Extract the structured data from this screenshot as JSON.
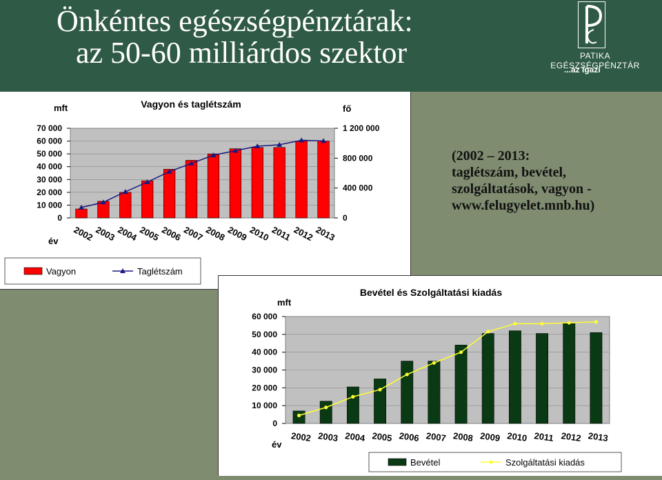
{
  "header": {
    "title_line1": "Önkéntes egészségpénztárak:",
    "title_line2": "az 50-60 milliárdos szektor"
  },
  "logo": {
    "name": "PATIKA EGÉSZSÉGPÉNZTÁR",
    "slogan": "...az Igazi",
    "icon": "pharmacy-p-logo-icon"
  },
  "note": {
    "lines": [
      "(2002 – 2013:",
      "taglétszám, bevétel,",
      "szolgáltatások, vagyon -",
      "www.felugyelet.mnb.hu)"
    ]
  },
  "colors": {
    "header_bg": "#2f5a45",
    "page_bg": "#7f8c70",
    "vagyon_bar": "#ff0000",
    "taglet_line": "#1a1a80",
    "bevetel_bar": "#0a3a14",
    "szolg_line": "#ffff33",
    "plot_bg": "#c0c0c0"
  },
  "chart_data": [
    {
      "type": "bar",
      "title": "Vagyon és taglétszám",
      "ylabel": "mft",
      "y2label": "fő",
      "xlabel": "év",
      "categories": [
        "2002",
        "2003",
        "2004",
        "2005",
        "2006",
        "2007",
        "2008",
        "2009",
        "2010",
        "2011",
        "2012",
        "2013"
      ],
      "ylim": [
        0,
        70000
      ],
      "yticks": [
        "70 000",
        "60 000",
        "50 000",
        "40 000",
        "30 000",
        "20 000",
        "10 000",
        "0"
      ],
      "y2lim": [
        0,
        1200000
      ],
      "y2ticks": [
        "1 200 000",
        "800 000",
        "400 000",
        "0"
      ],
      "series": [
        {
          "name": "Vagyon",
          "type": "bar",
          "axis": "left",
          "values": [
            7000,
            13000,
            20000,
            29000,
            38000,
            45000,
            50000,
            54000,
            55000,
            55000,
            60000,
            60000
          ]
        },
        {
          "name": "Taglétszám",
          "type": "line",
          "axis": "right",
          "values": [
            140000,
            210000,
            350000,
            480000,
            620000,
            730000,
            840000,
            900000,
            960000,
            980000,
            1040000,
            1030000
          ]
        }
      ],
      "legend": "bottom"
    },
    {
      "type": "bar",
      "title": "Bevétel és Szolgáltatási kiadás",
      "ylabel": "mft",
      "xlabel": "év",
      "categories": [
        "2002",
        "2003",
        "2004",
        "2005",
        "2006",
        "2007",
        "2008",
        "2009",
        "2010",
        "2011",
        "2012",
        "2013"
      ],
      "ylim": [
        0,
        60000
      ],
      "yticks": [
        "60 000",
        "50 000",
        "40 000",
        "30 000",
        "20 000",
        "10 000",
        "0"
      ],
      "series": [
        {
          "name": "Bevétel",
          "type": "bar",
          "values": [
            7000,
            12500,
            20500,
            25000,
            35000,
            35000,
            44000,
            50500,
            52000,
            50500,
            56000,
            51000
          ]
        },
        {
          "name": "Szolgáltatási kiadás",
          "type": "line",
          "values": [
            4500,
            9000,
            15000,
            19000,
            27500,
            34000,
            40000,
            51500,
            56000,
            56000,
            56500,
            57000
          ]
        }
      ],
      "legend": "bottom"
    }
  ]
}
